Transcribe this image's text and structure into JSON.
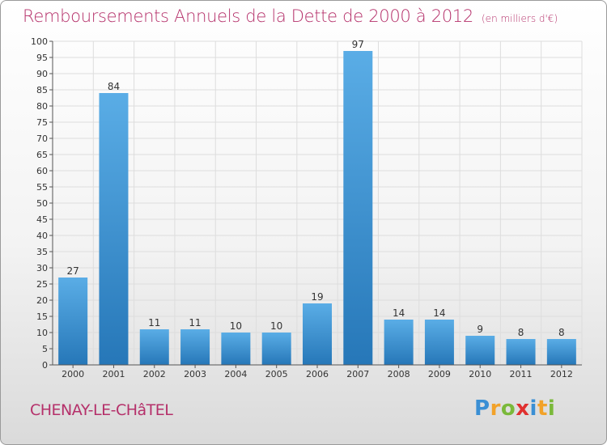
{
  "title": "Remboursements Annuels de la Dette de 2000 à 2012",
  "unit": "(en milliers d'€)",
  "town": "CHENAY-LE-CHâTEL",
  "logo": {
    "letters": [
      "P",
      "r",
      "o",
      "x",
      "i",
      "t",
      "i"
    ],
    "colors": [
      "#3a8fd4",
      "#f2a229",
      "#7ab93a",
      "#e0302f",
      "#3a8fd4",
      "#f2a229",
      "#7ab93a"
    ]
  },
  "chart_data": {
    "type": "bar",
    "categories": [
      "2000",
      "2001",
      "2002",
      "2003",
      "2004",
      "2005",
      "2006",
      "2007",
      "2008",
      "2009",
      "2010",
      "2011",
      "2012"
    ],
    "values": [
      27,
      84,
      11,
      11,
      10,
      10,
      19,
      97,
      14,
      14,
      9,
      8,
      8
    ],
    "ylim": [
      0,
      100
    ],
    "yticks": [
      0,
      5,
      10,
      15,
      20,
      25,
      30,
      35,
      40,
      45,
      50,
      55,
      60,
      65,
      70,
      75,
      80,
      85,
      90,
      95,
      100
    ],
    "grid": true,
    "colors": {
      "bar_light": "#5aade6",
      "bar_dark": "#2677b8",
      "grid": "#dddddd",
      "axis": "#555555",
      "text": "#333333"
    }
  }
}
